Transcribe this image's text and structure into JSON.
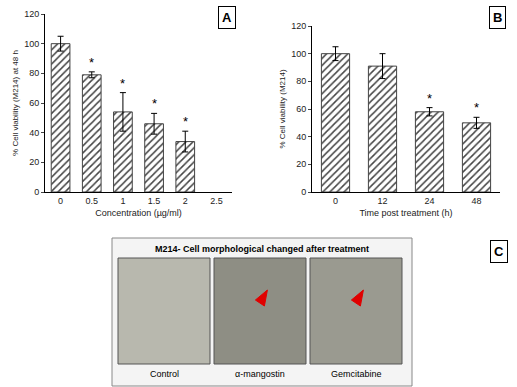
{
  "chart_data": [
    {
      "type": "bar",
      "annotations": [
        "A"
      ],
      "x_label": "Concentration (µg/ml)",
      "y_label": "% Cell viability (M214) at 48 h",
      "categories": [
        "0",
        "0.5",
        "1",
        "1.5",
        "2",
        "2.5"
      ],
      "values": [
        100,
        79,
        54,
        46,
        34,
        null
      ],
      "error": [
        5,
        2,
        13,
        7,
        7,
        null
      ],
      "significance": [
        null,
        "*",
        "*",
        "*",
        "*",
        null
      ],
      "color": "#444444",
      "ylim": [
        0,
        120
      ],
      "yticks": [
        0,
        20,
        40,
        60,
        80,
        100,
        120
      ],
      "grid": false
    },
    {
      "type": "bar",
      "annotations": [
        "B"
      ],
      "x_label": "Time post treatment (h)",
      "y_label": "% Cell viability (M214)",
      "categories": [
        "0",
        "12",
        "24",
        "48"
      ],
      "values": [
        100,
        91,
        58,
        50
      ],
      "error": [
        5,
        9,
        3,
        4
      ],
      "significance": [
        null,
        null,
        "*",
        "*"
      ],
      "color": "#444444",
      "ylim": [
        0,
        120
      ],
      "yticks": [
        0,
        20,
        40,
        60,
        80,
        100,
        120
      ],
      "grid": false
    }
  ],
  "panel_c": {
    "label": "C",
    "title": "M214- Cell morphological changed after treatment",
    "images": [
      "Control",
      "α-mangostin",
      "Gemcitabine"
    ]
  }
}
